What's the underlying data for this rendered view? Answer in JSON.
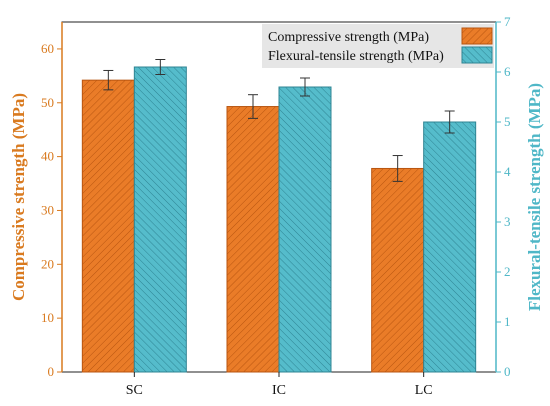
{
  "chart_data": {
    "type": "bar",
    "categories": [
      "SC",
      "IC",
      "LC"
    ],
    "series": [
      {
        "name": "Compressive strength (MPa)",
        "axis": "left",
        "values": [
          54.2,
          49.3,
          37.8
        ],
        "error": [
          1.8,
          2.2,
          2.4
        ],
        "color": "#e87722",
        "hatch": "diagonal-up"
      },
      {
        "name": "Flexural-tensile strength (MPa)",
        "axis": "right",
        "values": [
          6.1,
          5.7,
          5.0
        ],
        "error": [
          0.15,
          0.18,
          0.22
        ],
        "color": "#4fb7c7",
        "hatch": "diagonal-down"
      }
    ],
    "y_left": {
      "label": "Compressive strength (MPa)",
      "range": [
        0,
        65
      ],
      "ticks": [
        "0",
        "10",
        "20",
        "30",
        "40",
        "50",
        "60"
      ],
      "color": "#d97a1f"
    },
    "y_right": {
      "label": "Flexural-tensile strength (MPa)",
      "range": [
        0,
        7
      ],
      "ticks": [
        "0",
        "1",
        "2",
        "3",
        "4",
        "5",
        "6",
        "7"
      ],
      "color": "#4fb7c7"
    },
    "legend_position": "top-right",
    "grid": false
  }
}
